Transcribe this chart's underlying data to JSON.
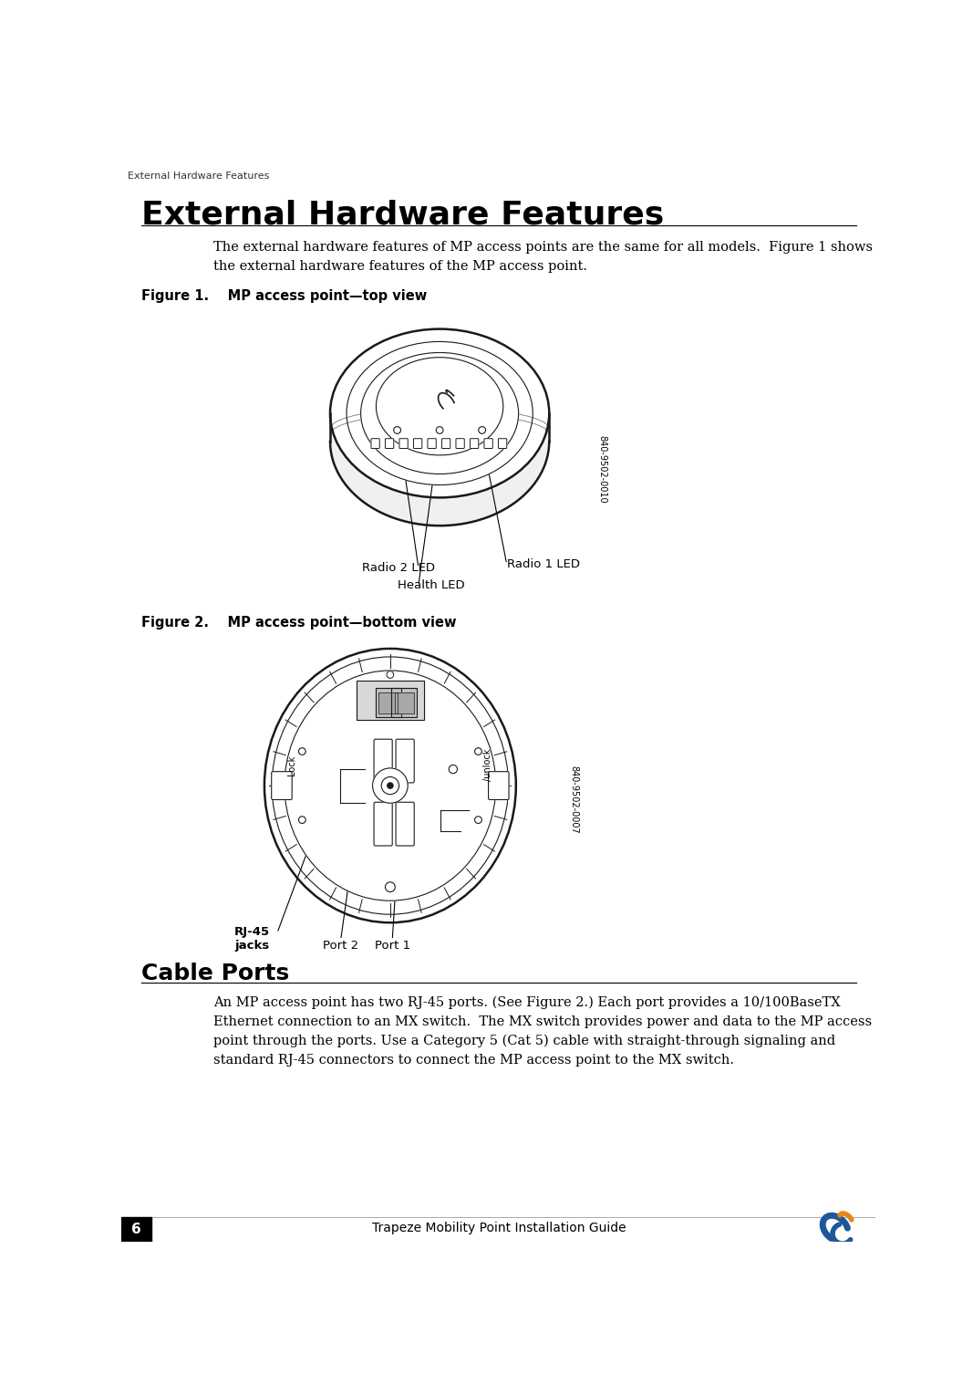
{
  "page_title": "External Hardware Features",
  "header_text": "External Hardware Features",
  "title_fontsize": 26,
  "header_fontsize": 8,
  "body_text_1": "The external hardware features of MP access points are the same for all models.  Figure 1 shows\nthe external hardware features of the MP access point.",
  "fig1_label": "Figure 1.    MP access point—top view",
  "fig2_label": "Figure 2.    MP access point—bottom view",
  "fig1_serial": "840-9502-0010",
  "fig2_serial": "840-9502-0007",
  "cable_ports_title": "Cable Ports",
  "cable_ports_text": "An MP access point has two RJ-45 ports. (See Figure 2.) Each port provides a 10/100BaseTX\nEthernet connection to an MX switch.  The MX switch provides power and data to the MP access\npoint through the ports. Use a Category 5 (Cat 5) cable with straight-through signaling and\nstandard RJ-45 connectors to connect the MP access point to the MX switch.",
  "footer_text": "Trapeze Mobility Point Installation Guide",
  "page_number": "6",
  "bg_color": "#ffffff",
  "text_color": "#000000",
  "label_radio2": "Radio 2 LED",
  "label_health": "Health LED",
  "label_radio1": "Radio 1 LED",
  "label_rj45": "RJ-45\njacks",
  "label_port2": "Port 2",
  "label_port1": "Port 1",
  "label_lock": "Lock",
  "label_unlock": "/unlock"
}
